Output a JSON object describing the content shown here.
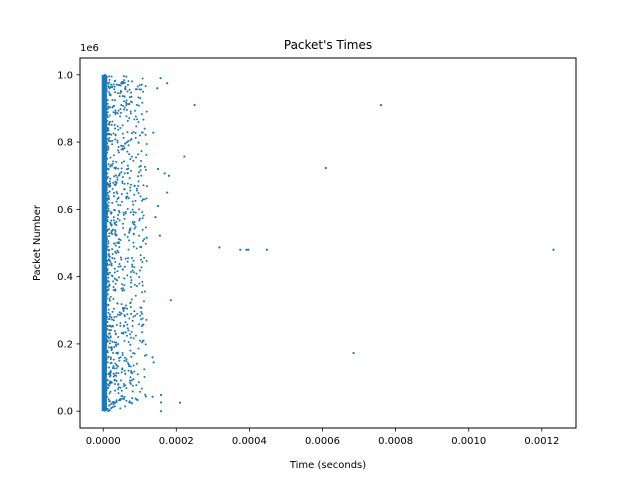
{
  "chart_data": {
    "type": "scatter",
    "title": "Packet's Times",
    "xlabel": "Time (seconds)",
    "ylabel": "Packet Number",
    "y_offset_label": "1e6",
    "xlim": [
      -6.35e-05,
      0.0012935
    ],
    "ylim": [
      -0.05,
      1.05
    ],
    "x_ticks": [
      0,
      0.0002,
      0.0004,
      0.0006,
      0.0008,
      0.001,
      0.0012
    ],
    "x_tick_labels": [
      "0.0000",
      "0.0002",
      "0.0004",
      "0.0006",
      "0.0008",
      "0.0010",
      "0.0012"
    ],
    "y_ticks": [
      0,
      0.2,
      0.4,
      0.6,
      0.8,
      1.0
    ],
    "y_tick_labels": [
      "0.0",
      "0.2",
      "0.4",
      "0.6",
      "0.8",
      "1.0"
    ],
    "grid": false,
    "marker_color": "#1f77b4",
    "dense_band": {
      "x_range": [
        0,
        6e-06
      ],
      "y_range": [
        0,
        1.0
      ],
      "approx_count": 1000000
    },
    "points": [
      {
        "x": 0.00076,
        "y": 0.91
      },
      {
        "x": 0.00025,
        "y": 0.91
      },
      {
        "x": 0.000175,
        "y": 0.975
      },
      {
        "x": 0.000157,
        "y": 0.99
      },
      {
        "x": 0.000148,
        "y": 0.96
      },
      {
        "x": 0.000137,
        "y": 0.828
      },
      {
        "x": 0.000222,
        "y": 0.757
      },
      {
        "x": 0.000609,
        "y": 0.723
      },
      {
        "x": 0.00015,
        "y": 0.72
      },
      {
        "x": 0.000168,
        "y": 0.707
      },
      {
        "x": 0.00018,
        "y": 0.7
      },
      {
        "x": 0.000175,
        "y": 0.65
      },
      {
        "x": 0.00015,
        "y": 0.61
      },
      {
        "x": 0.000143,
        "y": 0.577
      },
      {
        "x": 0.000155,
        "y": 0.522
      },
      {
        "x": 0.000318,
        "y": 0.487
      },
      {
        "x": 0.000375,
        "y": 0.48
      },
      {
        "x": 0.000392,
        "y": 0.48
      },
      {
        "x": 0.000397,
        "y": 0.48
      },
      {
        "x": 0.000448,
        "y": 0.48
      },
      {
        "x": 0.001232,
        "y": 0.48
      },
      {
        "x": 0.000185,
        "y": 0.33
      },
      {
        "x": 0.000685,
        "y": 0.173
      },
      {
        "x": 0.000135,
        "y": 0.16
      },
      {
        "x": 0.000138,
        "y": 0.145
      },
      {
        "x": 0.000158,
        "y": 0.048
      },
      {
        "x": 0.000135,
        "y": 0.043
      },
      {
        "x": 0.00021,
        "y": 0.025
      },
      {
        "x": 0.000158,
        "y": 0.026
      },
      {
        "x": 0.000158,
        "y": 0.0
      }
    ],
    "spread_cluster": {
      "x_range": [
        4e-06,
        0.00012
      ],
      "y_range": [
        0,
        1.0
      ]
    }
  }
}
